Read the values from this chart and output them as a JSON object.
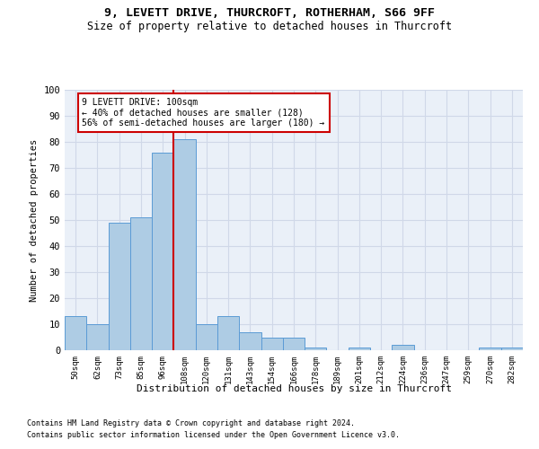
{
  "title_line1": "9, LEVETT DRIVE, THURCROFT, ROTHERHAM, S66 9FF",
  "title_line2": "Size of property relative to detached houses in Thurcroft",
  "xlabel": "Distribution of detached houses by size in Thurcroft",
  "ylabel": "Number of detached properties",
  "footnote1": "Contains HM Land Registry data © Crown copyright and database right 2024.",
  "footnote2": "Contains public sector information licensed under the Open Government Licence v3.0.",
  "bar_labels": [
    "50sqm",
    "62sqm",
    "73sqm",
    "85sqm",
    "96sqm",
    "108sqm",
    "120sqm",
    "131sqm",
    "143sqm",
    "154sqm",
    "166sqm",
    "178sqm",
    "189sqm",
    "201sqm",
    "212sqm",
    "224sqm",
    "236sqm",
    "247sqm",
    "259sqm",
    "270sqm",
    "282sqm"
  ],
  "bar_values": [
    13,
    10,
    49,
    51,
    76,
    81,
    10,
    13,
    7,
    5,
    5,
    1,
    0,
    1,
    0,
    2,
    0,
    0,
    0,
    1,
    1
  ],
  "bar_color": "#aecce4",
  "bar_edge_color": "#5b9bd5",
  "grid_color": "#d0d8e8",
  "background_color": "#eaf0f8",
  "property_line_x": 4.5,
  "annotation_text_line1": "9 LEVETT DRIVE: 100sqm",
  "annotation_text_line2": "← 40% of detached houses are smaller (128)",
  "annotation_text_line3": "56% of semi-detached houses are larger (180) →",
  "annotation_box_color": "#cc0000",
  "ylim": [
    0,
    100
  ],
  "yticks": [
    0,
    10,
    20,
    30,
    40,
    50,
    60,
    70,
    80,
    90,
    100
  ]
}
